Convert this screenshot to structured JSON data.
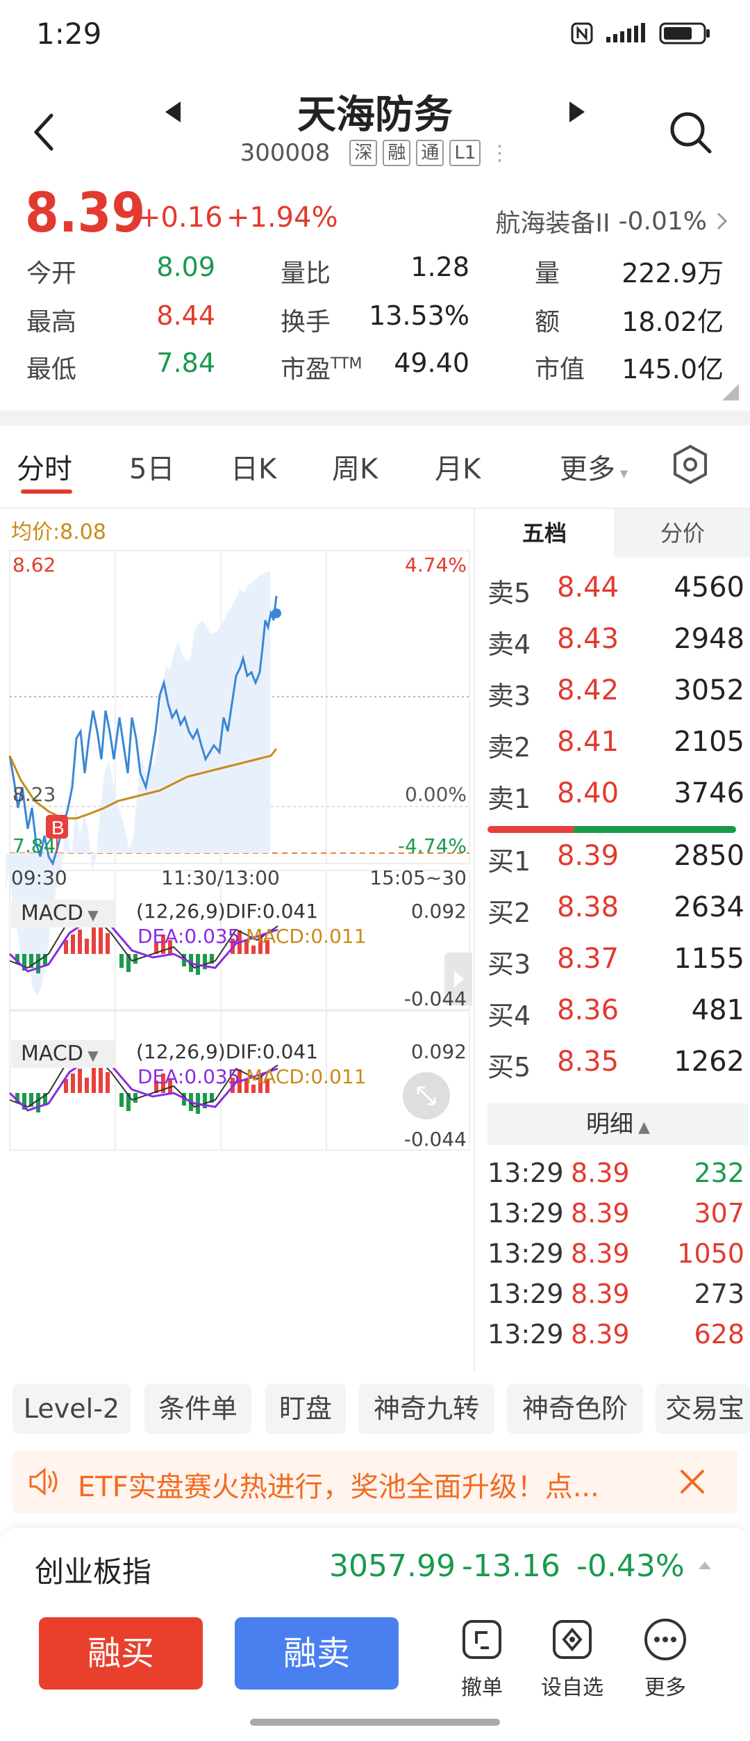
{
  "status_bar": {
    "time": "1:29"
  },
  "header": {
    "title": "天海防务",
    "code": "300008",
    "tags": [
      "深",
      "融",
      "通",
      "L1"
    ]
  },
  "quote": {
    "price": "8.39",
    "change": "+0.16",
    "change_pct": "+1.94%",
    "sector_name": "航海装备II",
    "sector_pct": "-0.01%"
  },
  "stats": {
    "open_label": "今开",
    "open": "8.09",
    "vol_ratio_label": "量比",
    "vol_ratio": "1.28",
    "volume_label": "量",
    "volume": "222.9万",
    "high_label": "最高",
    "high": "8.44",
    "turnover_label": "换手",
    "turnover": "13.53%",
    "amount_label": "额",
    "amount": "18.02亿",
    "low_label": "最低",
    "low": "7.84",
    "pe_label": "市盈",
    "pe_sup": "TTM",
    "pe": "49.40",
    "mktcap_label": "市值",
    "mktcap": "145.0亿"
  },
  "tabs": [
    "分时",
    "5日",
    "日K",
    "周K",
    "月K",
    "更多"
  ],
  "chart": {
    "avg_price_label": "均价:8.08",
    "y_top": "8.62",
    "y_mid": "8.23",
    "y_bot": "7.84",
    "pct_top": "4.74%",
    "pct_mid": "0.00%",
    "pct_bot": "-4.74%",
    "x_start": "09:30",
    "x_mid": "11:30/13:00",
    "x_end": "15:05~30",
    "marker": "B"
  },
  "macd": [
    {
      "name": "MACD",
      "params": "(12,26,9)DIF:0.041",
      "dea": "DEA:0.035",
      "macd": "MACD:0.011",
      "max": "0.092",
      "min": "-0.044"
    },
    {
      "name": "MACD",
      "params": "(12,26,9)DIF:0.041",
      "dea": "DEA:0.035",
      "macd": "MACD:0.011",
      "max": "0.092",
      "min": "-0.044"
    }
  ],
  "orderbook": {
    "tab_five": "五档",
    "tab_price": "分价",
    "asks": [
      {
        "label": "卖5",
        "price": "8.44",
        "vol": "4560"
      },
      {
        "label": "卖4",
        "price": "8.43",
        "vol": "2948"
      },
      {
        "label": "卖3",
        "price": "8.42",
        "vol": "3052"
      },
      {
        "label": "卖2",
        "price": "8.41",
        "vol": "2105"
      },
      {
        "label": "卖1",
        "price": "8.40",
        "vol": "3746"
      }
    ],
    "bids": [
      {
        "label": "买1",
        "price": "8.39",
        "vol": "2850"
      },
      {
        "label": "买2",
        "price": "8.38",
        "vol": "2634"
      },
      {
        "label": "买3",
        "price": "8.37",
        "vol": "1155"
      },
      {
        "label": "买4",
        "price": "8.36",
        "vol": "481"
      },
      {
        "label": "买5",
        "price": "8.35",
        "vol": "1262"
      }
    ],
    "detail_label": "明细",
    "trades": [
      {
        "time": "13:29",
        "price": "8.39",
        "vol": "232",
        "color": "#1a9a4c"
      },
      {
        "time": "13:29",
        "price": "8.39",
        "vol": "307",
        "color": "#e23a2e"
      },
      {
        "time": "13:29",
        "price": "8.39",
        "vol": "1050",
        "color": "#e23a2e"
      },
      {
        "time": "13:29",
        "price": "8.39",
        "vol": "273",
        "color": "#333333"
      },
      {
        "time": "13:29",
        "price": "8.39",
        "vol": "628",
        "color": "#e23a2e"
      }
    ]
  },
  "tools": [
    "Level-2",
    "条件单",
    "盯盘",
    "神奇九转",
    "神奇色阶",
    "交易宝"
  ],
  "banner": {
    "text": "ETF实盘赛火热进行，奖池全面升级！点..."
  },
  "index": {
    "name": "创业板指",
    "value": "3057.99",
    "change": "-13.16",
    "pct": "-0.43%"
  },
  "bottom": {
    "buy": "融买",
    "sell": "融卖",
    "cancel": "撤单",
    "watchlist": "设自选",
    "more": "更多"
  },
  "colors": {
    "up": "#e23a2e",
    "down": "#1a9a4c",
    "price_line": "#3a86d6",
    "avg_line": "#c98a1a",
    "buy_btn": "#e8402d",
    "sell_btn": "#4a7ff0"
  }
}
